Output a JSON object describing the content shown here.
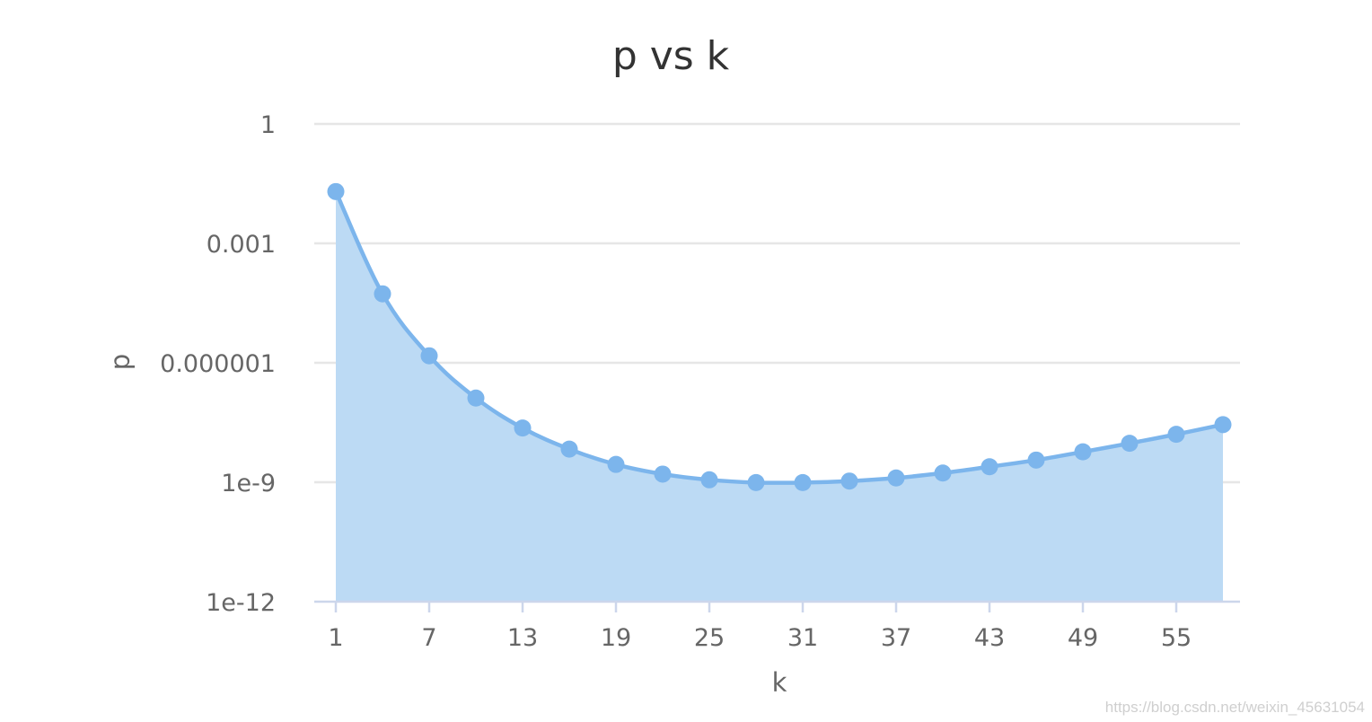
{
  "chart_data": {
    "type": "area",
    "title": "p vs k",
    "xlabel": "k",
    "ylabel": "p",
    "yscale": "log",
    "ylim": [
      1e-12,
      1
    ],
    "xlim": [
      1,
      58
    ],
    "grid": true,
    "legend": "none",
    "y_ticks": [
      "1",
      "0.001",
      "0.000001",
      "1e-9",
      "1e-12"
    ],
    "y_tick_values": [
      1,
      0.001,
      1e-06,
      1e-09,
      1e-12
    ],
    "x_ticks": [
      "1",
      "7",
      "13",
      "19",
      "25",
      "31",
      "37",
      "43",
      "49",
      "55"
    ],
    "x_tick_values": [
      1,
      7,
      13,
      19,
      25,
      31,
      37,
      43,
      49,
      55
    ],
    "series": [
      {
        "color": "#7cb5ec",
        "x": [
          1,
          4,
          7,
          10,
          13,
          16,
          19,
          22,
          25,
          28,
          31,
          34,
          37,
          40,
          43,
          46,
          49,
          52,
          55,
          58
        ],
        "y": [
          0.02,
          5.4e-05,
          1.5e-06,
          1.3e-07,
          2.3e-08,
          6.8e-09,
          2.8e-09,
          1.6e-09,
          1.15e-09,
          9.8e-10,
          9.8e-10,
          1.07e-09,
          1.28e-09,
          1.7e-09,
          2.45e-09,
          3.6e-09,
          5.8e-09,
          9.5e-09,
          1.6e-08,
          2.8e-08
        ]
      }
    ]
  },
  "watermark": "https://blog.csdn.net/weixin_45631054"
}
